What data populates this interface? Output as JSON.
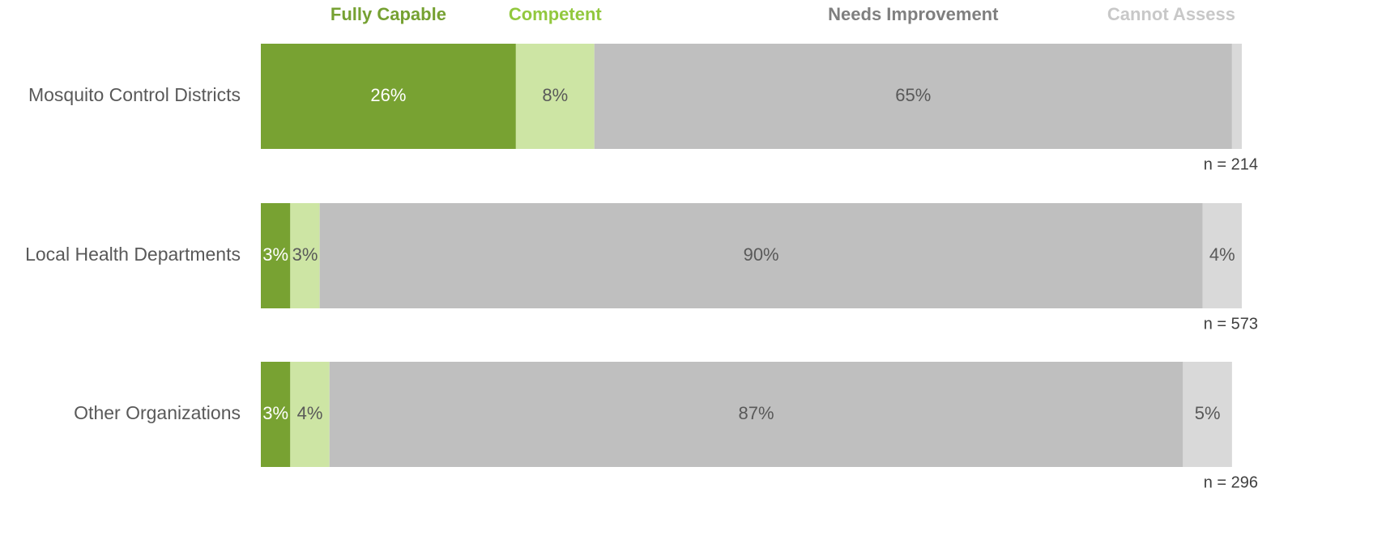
{
  "chart_data": {
    "type": "stacked-bar-horizontal",
    "categories": [
      "Mosquito Control Districts",
      "Local Health Departments",
      "Other Organizations"
    ],
    "n_labels": [
      "n = 214",
      "n = 573",
      "n = 296"
    ],
    "xlim": [
      0,
      100
    ],
    "series": [
      {
        "name": "Fully Capable",
        "color": "#78a232",
        "legend_color": "#76a132",
        "label_color": "#ffffff",
        "values": [
          26,
          3,
          3
        ],
        "value_labels": [
          "26%",
          "3%",
          "3%"
        ]
      },
      {
        "name": "Competent",
        "color": "#cde5a4",
        "legend_color": "#92c83e",
        "label_color": "#595959",
        "values": [
          8,
          3,
          4
        ],
        "value_labels": [
          "8%",
          "3%",
          "4%"
        ]
      },
      {
        "name": "Needs Improvement",
        "color": "#bfbfbf",
        "legend_color": "#7f7f7f",
        "label_color": "#595959",
        "values": [
          65,
          90,
          87
        ],
        "value_labels": [
          "65%",
          "90%",
          "87%"
        ]
      },
      {
        "name": "Cannot Assess",
        "color": "#d9d9d9",
        "legend_color": "#c8c8c8",
        "label_color": "#595959",
        "values": [
          1,
          4,
          5
        ],
        "value_labels": [
          null,
          "4%",
          "5%"
        ]
      }
    ]
  }
}
